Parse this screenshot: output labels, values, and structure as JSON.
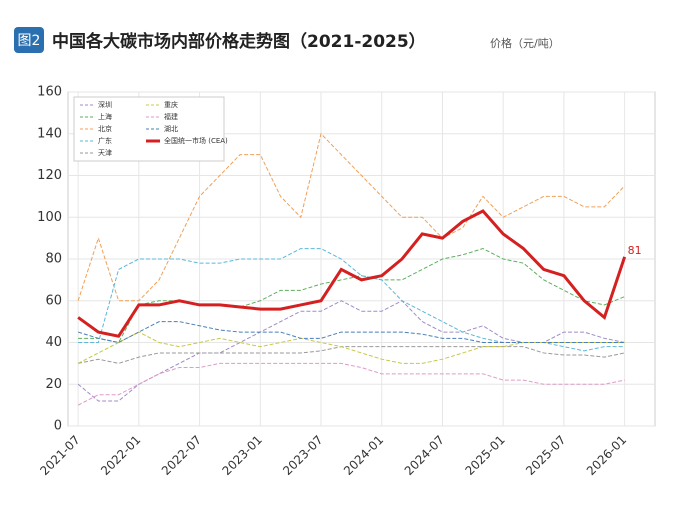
{
  "badge": "图2",
  "chart_data": {
    "type": "line",
    "title": "中国各大碳市场内部价格走势图（2021-2025）",
    "subtitle": "价格（元/吨）",
    "x": [
      "2021-07",
      "2021-09",
      "2021-11",
      "2022-01",
      "2022-03",
      "2022-05",
      "2022-07",
      "2022-09",
      "2022-11",
      "2023-01",
      "2023-03",
      "2023-05",
      "2023-07",
      "2023-09",
      "2023-11",
      "2024-01",
      "2024-03",
      "2024-05",
      "2024-07",
      "2024-09",
      "2024-11",
      "2025-01",
      "2025-03",
      "2025-05",
      "2025-07",
      "2025-09",
      "2025-11",
      "2026-01"
    ],
    "xlim": [
      "2021-06",
      "2026-04"
    ],
    "xticks": [
      "2021-07",
      "2022-01",
      "2022-07",
      "2023-01",
      "2023-07",
      "2024-01",
      "2024-07",
      "2025-01",
      "2025-07",
      "2026-01"
    ],
    "ylim": [
      0,
      160
    ],
    "yticks": [
      0,
      20,
      40,
      60,
      80,
      100,
      120,
      140,
      160
    ],
    "grid": true,
    "legend": "upper left",
    "series": [
      {
        "name": "深圳",
        "color": "#a08cc8",
        "values": [
          20,
          12,
          12,
          20,
          25,
          30,
          35,
          35,
          40,
          45,
          50,
          55,
          55,
          60,
          55,
          55,
          60,
          50,
          45,
          45,
          48,
          42,
          40,
          40,
          45,
          45,
          42,
          40
        ]
      },
      {
        "name": "上海",
        "color": "#5fae5f",
        "values": [
          42,
          42,
          40,
          58,
          60,
          60,
          58,
          58,
          57,
          60,
          65,
          65,
          68,
          70,
          72,
          70,
          70,
          75,
          80,
          82,
          85,
          80,
          78,
          70,
          65,
          60,
          58,
          62
        ]
      },
      {
        "name": "北京",
        "color": "#f0a058",
        "values": [
          60,
          90,
          60,
          60,
          70,
          90,
          110,
          120,
          130,
          130,
          110,
          100,
          140,
          130,
          120,
          110,
          100,
          100,
          90,
          95,
          110,
          100,
          105,
          110,
          110,
          105,
          105,
          115
        ]
      },
      {
        "name": "广东",
        "color": "#5ab8d8",
        "values": [
          40,
          40,
          75,
          80,
          80,
          80,
          78,
          78,
          80,
          80,
          80,
          85,
          85,
          80,
          72,
          70,
          60,
          55,
          50,
          45,
          42,
          40,
          40,
          40,
          38,
          36,
          38,
          38
        ]
      },
      {
        "name": "天津",
        "color": "#999999",
        "values": [
          30,
          32,
          30,
          33,
          35,
          35,
          35,
          35,
          35,
          35,
          35,
          35,
          36,
          38,
          38,
          38,
          38,
          38,
          38,
          38,
          38,
          38,
          38,
          35,
          34,
          34,
          33,
          35
        ]
      },
      {
        "name": "重庆",
        "color": "#c8c84a",
        "values": [
          30,
          35,
          40,
          45,
          40,
          38,
          40,
          42,
          40,
          38,
          40,
          42,
          40,
          38,
          35,
          32,
          30,
          30,
          32,
          35,
          38,
          38,
          40,
          40,
          40,
          40,
          40,
          40
        ]
      },
      {
        "name": "福建",
        "color": "#e09ac8",
        "values": [
          10,
          15,
          15,
          20,
          25,
          28,
          28,
          30,
          30,
          30,
          30,
          30,
          30,
          30,
          28,
          25,
          25,
          25,
          25,
          25,
          25,
          22,
          22,
          20,
          20,
          20,
          20,
          22
        ]
      },
      {
        "name": "湖北",
        "color": "#4a7fb8",
        "values": [
          45,
          42,
          40,
          45,
          50,
          50,
          48,
          46,
          45,
          45,
          45,
          42,
          42,
          45,
          45,
          45,
          45,
          44,
          42,
          42,
          40,
          40,
          40,
          40,
          40,
          40,
          40,
          40
        ]
      },
      {
        "name": "全国统一市场 (CEA)",
        "color": "#d42020",
        "values": [
          52,
          45,
          43,
          58,
          58,
          60,
          58,
          58,
          57,
          56,
          56,
          58,
          60,
          75,
          70,
          72,
          80,
          92,
          90,
          98,
          103,
          92,
          85,
          75,
          72,
          60,
          52,
          81
        ]
      }
    ]
  }
}
